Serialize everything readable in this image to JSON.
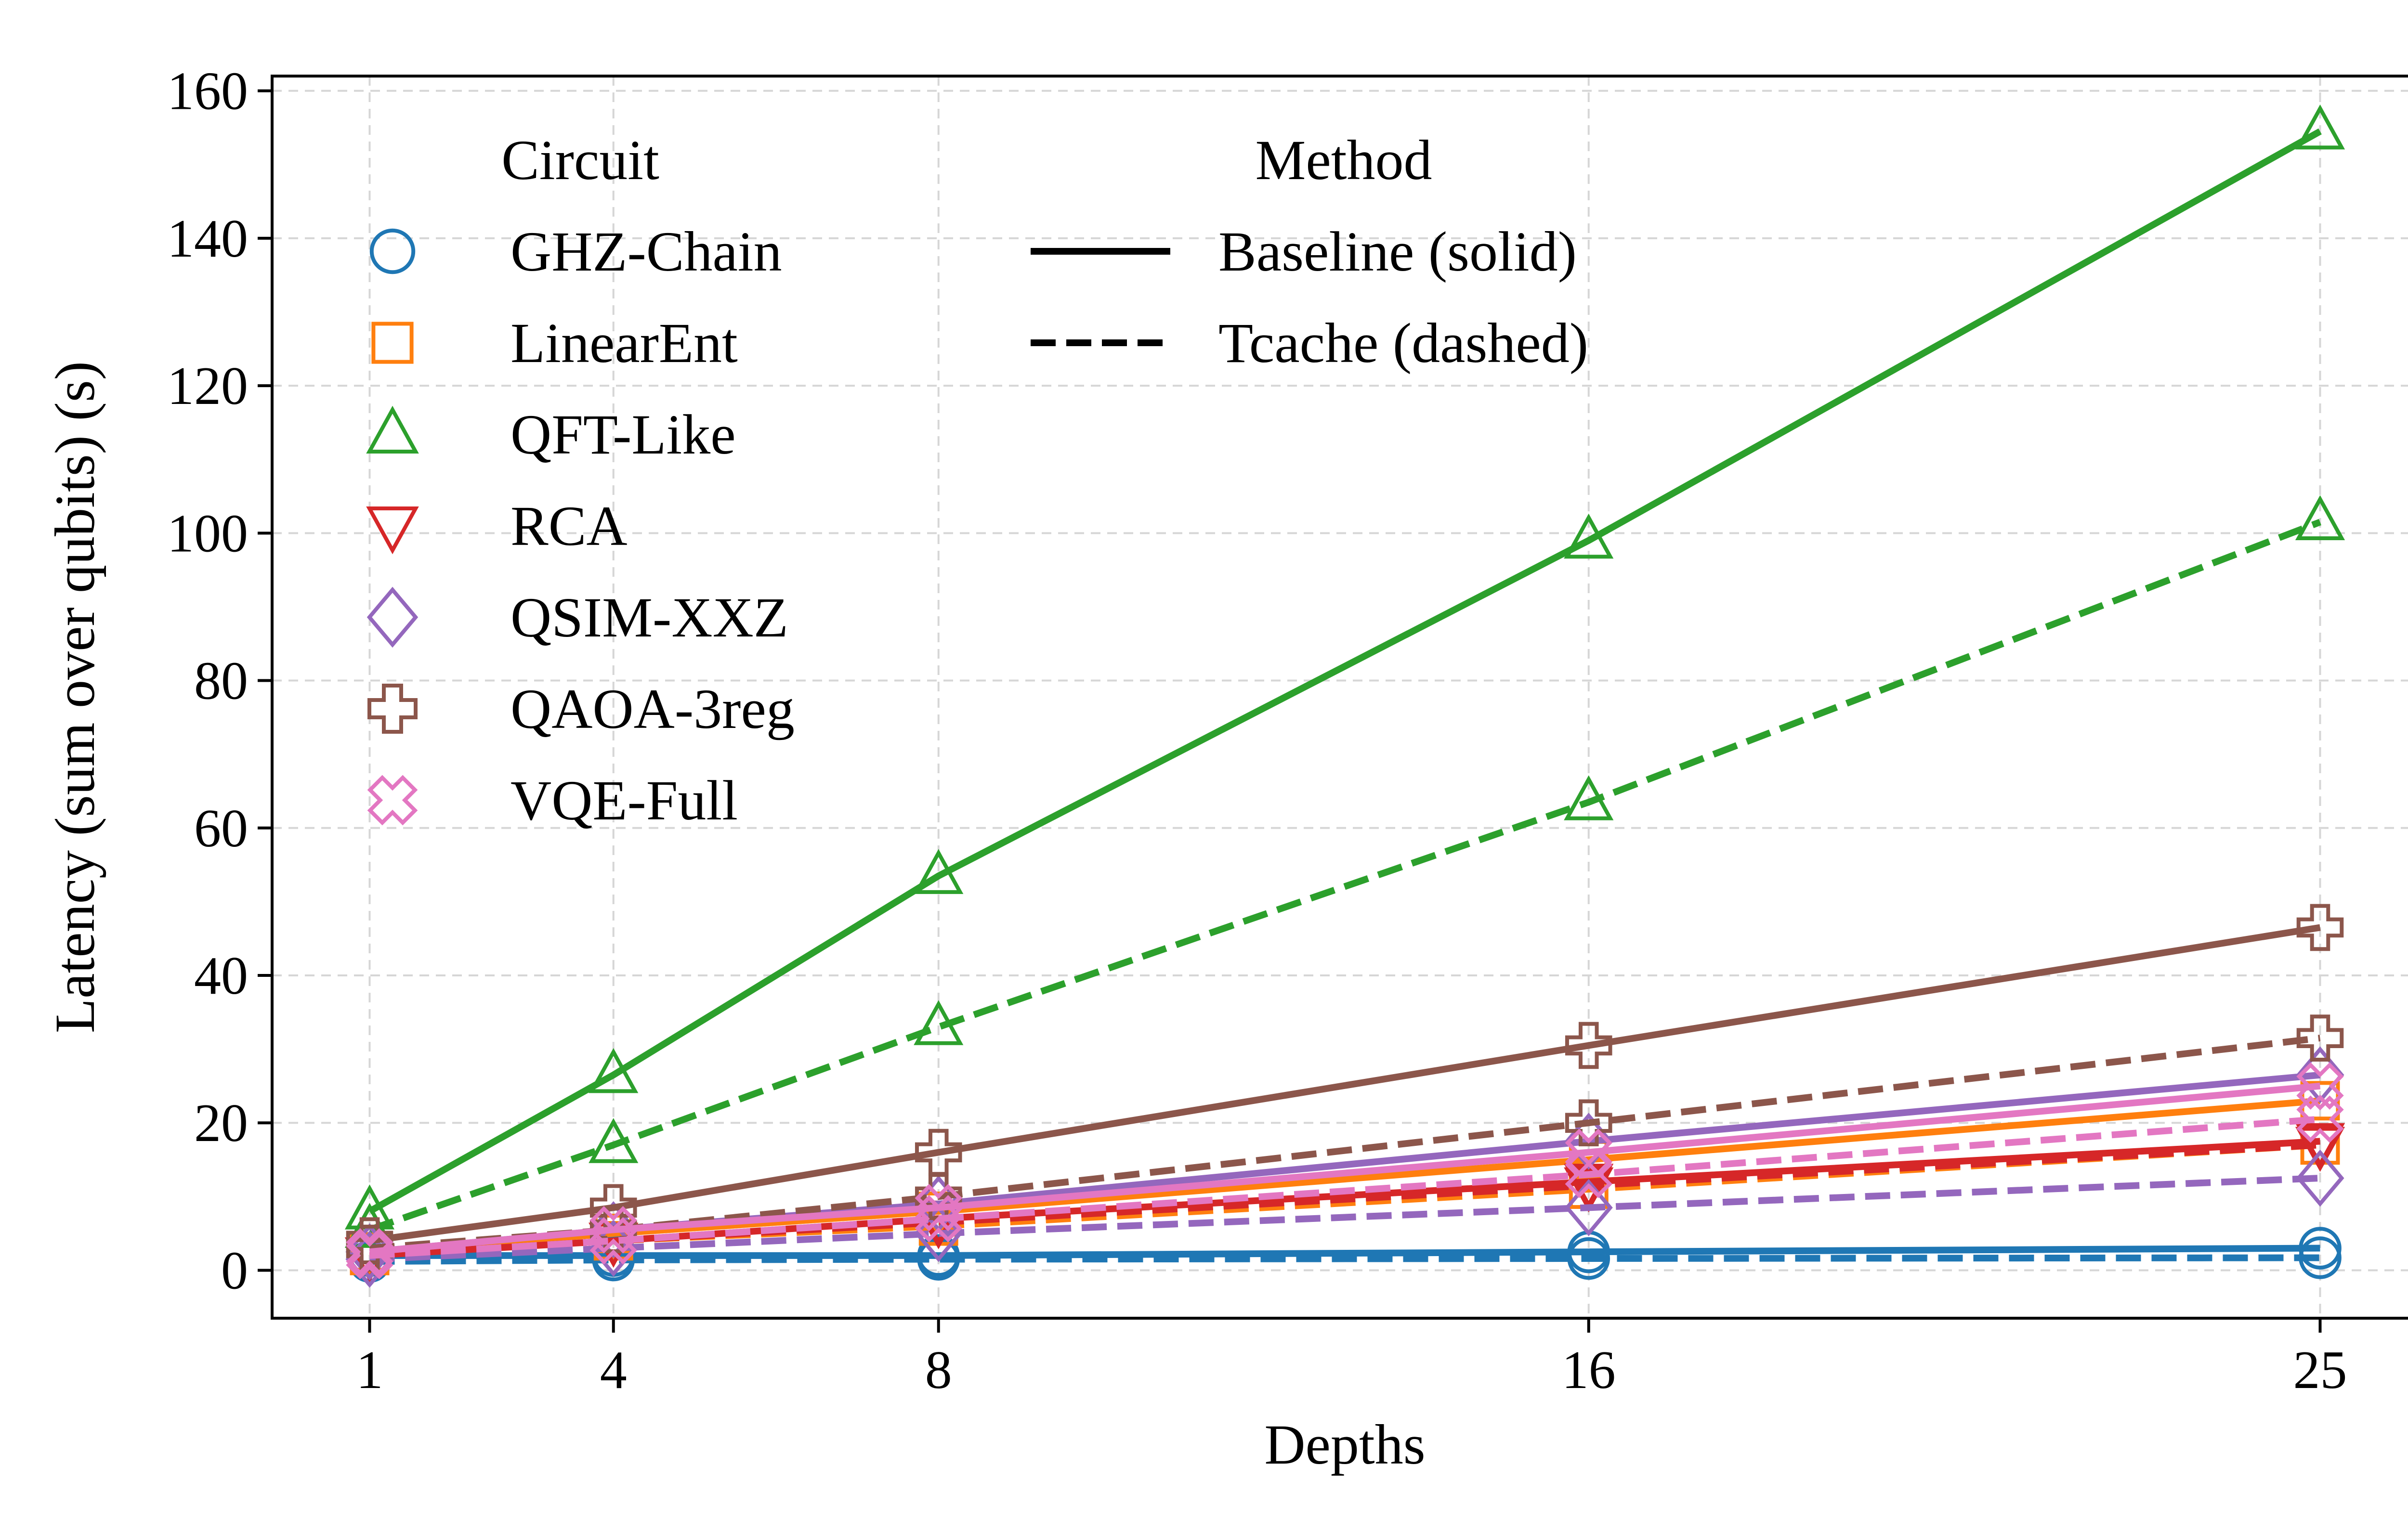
{
  "chart_data": {
    "type": "line",
    "xlabel": "Depths",
    "ylabel": "Latency (sum over qubits) (s)",
    "x": [
      1,
      4,
      8,
      16,
      25
    ],
    "x_ticks": [
      "1",
      "4",
      "8",
      "16",
      "25"
    ],
    "y_ticks": [
      "0",
      "20",
      "40",
      "60",
      "80",
      "100",
      "120",
      "140",
      "160"
    ],
    "ylim": [
      -6.5,
      162
    ],
    "xlim": [
      -0.2,
      26.2
    ],
    "grid": true,
    "legend_circuit": {
      "title": "Circuit",
      "entries": [
        "GHZ-Chain",
        "LinearEnt",
        "QFT-Like",
        "RCA",
        "QSIM-XXZ",
        "QAOA-3reg",
        "VQE-Full"
      ]
    },
    "legend_method": {
      "title": "Method",
      "entries": [
        "Baseline (solid)",
        "Tcache (dashed)"
      ]
    },
    "series": [
      {
        "name": "GHZ-Chain",
        "method": "Baseline",
        "color": "#1f77b4",
        "marker": "circle",
        "values": [
          2.0,
          2.0,
          2.0,
          2.5,
          3.0
        ]
      },
      {
        "name": "GHZ-Chain",
        "method": "Tcache",
        "color": "#1f77b4",
        "marker": "circle",
        "values": [
          1.2,
          1.4,
          1.5,
          1.6,
          1.7
        ]
      },
      {
        "name": "LinearEnt",
        "method": "Baseline",
        "color": "#ff7f0e",
        "marker": "square",
        "values": [
          2.5,
          5.0,
          8.0,
          15.0,
          23.0
        ]
      },
      {
        "name": "LinearEnt",
        "method": "Tcache",
        "color": "#ff7f0e",
        "marker": "square",
        "values": [
          2.0,
          4.0,
          6.0,
          11.0,
          17.0
        ]
      },
      {
        "name": "QFT-Like",
        "method": "Baseline",
        "color": "#2ca02c",
        "marker": "triangle-up",
        "values": [
          8.0,
          26.5,
          53.5,
          99.0,
          154.5
        ]
      },
      {
        "name": "QFT-Like",
        "method": "Tcache",
        "color": "#2ca02c",
        "marker": "triangle-up",
        "values": [
          5.5,
          17.0,
          33.0,
          63.5,
          101.5
        ]
      },
      {
        "name": "RCA",
        "method": "Baseline",
        "color": "#d62728",
        "marker": "triangle-down",
        "values": [
          2.0,
          4.0,
          7.0,
          12.0,
          17.5
        ]
      },
      {
        "name": "RCA",
        "method": "Tcache",
        "color": "#d62728",
        "marker": "triangle-down",
        "values": [
          2.0,
          4.0,
          6.5,
          11.5,
          17.0
        ]
      },
      {
        "name": "QSIM-XXZ",
        "method": "Baseline",
        "color": "#9467bd",
        "marker": "diamond",
        "values": [
          2.5,
          5.5,
          9.0,
          17.5,
          26.5
        ]
      },
      {
        "name": "QSIM-XXZ",
        "method": "Tcache",
        "color": "#9467bd",
        "marker": "diamond",
        "values": [
          1.5,
          3.0,
          5.0,
          8.5,
          12.5
        ]
      },
      {
        "name": "QAOA-3reg",
        "method": "Baseline",
        "color": "#8c564b",
        "marker": "plus",
        "values": [
          4.0,
          8.5,
          16.0,
          30.5,
          46.5
        ]
      },
      {
        "name": "QAOA-3reg",
        "method": "Tcache",
        "color": "#8c564b",
        "marker": "plus",
        "values": [
          3.0,
          5.5,
          10.0,
          20.0,
          31.5
        ]
      },
      {
        "name": "VQE-Full",
        "method": "Baseline",
        "color": "#e377c2",
        "marker": "x",
        "values": [
          2.5,
          5.5,
          8.5,
          16.0,
          25.0
        ]
      },
      {
        "name": "VQE-Full",
        "method": "Tcache",
        "color": "#e377c2",
        "marker": "x",
        "values": [
          2.0,
          4.0,
          7.0,
          13.0,
          20.5
        ]
      }
    ]
  }
}
